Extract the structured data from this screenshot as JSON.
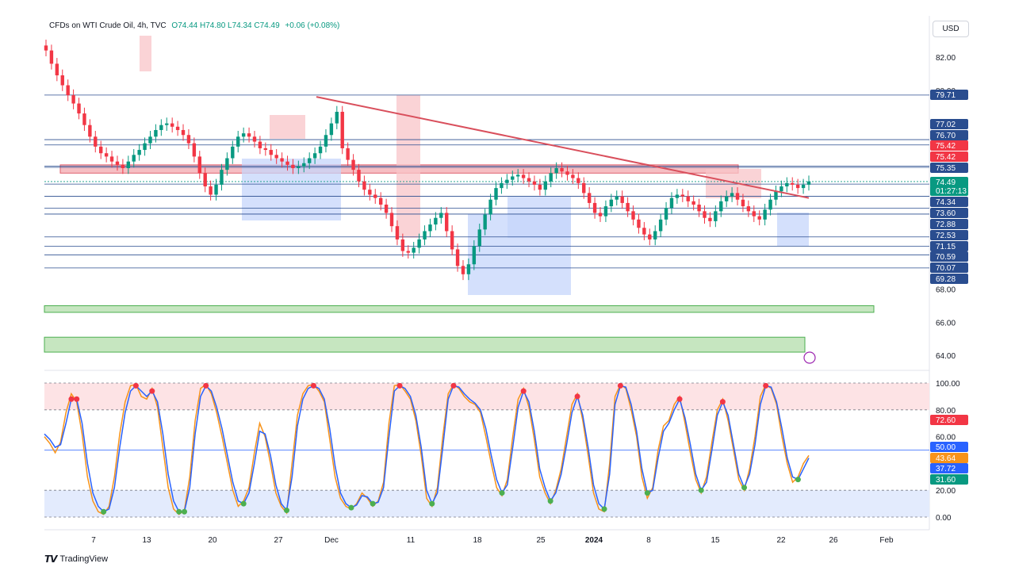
{
  "header": {
    "symbol": "CFDs on WTI Crude Oil, 4h, TVC",
    "ohlc": "O74.44 H74.80 L74.34 C74.49",
    "change": "+0.06 (+0.08%)"
  },
  "currency_button": "USD",
  "footer": {
    "logo_icon": "tradingview-logo-icon",
    "brand": "TradingView"
  },
  "colors": {
    "up": "#089981",
    "down": "#f23645",
    "level": "#2a4d8f",
    "trendline": "#d94f5c",
    "stoch_k": "#2962ff",
    "stoch_d": "#f7931a"
  },
  "chart_data": [
    {
      "type": "candlestick",
      "title": "",
      "ylim": [
        63,
        84
      ],
      "price_ticks": [
        "82.00",
        "80.00",
        "68.00",
        "66.00",
        "64.00"
      ],
      "x_ticks": [
        "7",
        "13",
        "20",
        "27",
        "Dec",
        "11",
        "18",
        "25",
        "2024",
        "8",
        "15",
        "22",
        "26",
        "Feb"
      ],
      "horizontal_levels": [
        79.71,
        77.02,
        76.7,
        75.42,
        75.35,
        74.34,
        73.6,
        72.88,
        72.53,
        71.15,
        70.59,
        70.07,
        69.28
      ],
      "price_labels": [
        {
          "text": "79.71",
          "color": "#2a4d8f"
        },
        {
          "text": "77.02",
          "color": "#2a4d8f"
        },
        {
          "text": "76.70",
          "color": "#2a4d8f"
        },
        {
          "text": "75.42",
          "color": "#f23645"
        },
        {
          "text": "75.42",
          "color": "#f23645"
        },
        {
          "text": "75.35",
          "color": "#2a4d8f"
        },
        {
          "text": "74.49",
          "color": "#089981"
        },
        {
          "text": "01:27:13",
          "color": "#089981"
        },
        {
          "text": "74.34",
          "color": "#2a4d8f"
        },
        {
          "text": "73.60",
          "color": "#2a4d8f"
        },
        {
          "text": "72.88",
          "color": "#2a4d8f"
        },
        {
          "text": "72.53",
          "color": "#2a4d8f"
        },
        {
          "text": "71.15",
          "color": "#2a4d8f"
        },
        {
          "text": "70.59",
          "color": "#2a4d8f"
        },
        {
          "text": "70.07",
          "color": "#2a4d8f"
        },
        {
          "text": "69.28",
          "color": "#2a4d8f"
        }
      ],
      "resistance_zone": [
        75.0,
        75.5
      ],
      "support_zones": [
        [
          66.6,
          67.0
        ],
        [
          64.2,
          65.1
        ]
      ],
      "trendline": {
        "from": [
          399,
          79.6
        ],
        "to": [
          1020,
          73.5
        ]
      },
      "series_close": [
        82.4,
        81.6,
        80.9,
        80.3,
        79.7,
        79.2,
        78.6,
        77.9,
        77.2,
        76.6,
        76.2,
        76.0,
        75.7,
        75.5,
        75.3,
        75.7,
        76.1,
        76.4,
        76.8,
        77.2,
        77.6,
        77.9,
        78.0,
        77.8,
        77.6,
        77.3,
        76.8,
        76.0,
        75.0,
        74.2,
        73.7,
        74.3,
        75.2,
        75.9,
        76.6,
        77.2,
        77.4,
        77.2,
        76.9,
        76.5,
        76.4,
        76.1,
        75.9,
        75.7,
        75.5,
        75.3,
        75.4,
        75.6,
        75.9,
        76.2,
        76.6,
        77.3,
        78.0,
        78.7,
        76.5,
        75.8,
        75.2,
        74.5,
        74.0,
        73.7,
        73.5,
        73.1,
        72.6,
        71.8,
        71.0,
        70.3,
        70.2,
        70.5,
        71.0,
        71.5,
        71.9,
        72.3,
        72.6,
        71.5,
        70.4,
        69.4,
        68.9,
        69.5,
        70.6,
        71.6,
        72.5,
        73.4,
        74.1,
        74.4,
        74.6,
        74.8,
        74.9,
        74.7,
        74.5,
        74.3,
        74.0,
        74.5,
        75.0,
        75.3,
        75.1,
        74.9,
        74.7,
        74.4,
        73.8,
        73.2,
        72.6,
        72.4,
        73.0,
        73.4,
        73.6,
        73.2,
        72.7,
        72.2,
        71.7,
        71.3,
        71.0,
        71.5,
        72.2,
        72.9,
        73.5,
        73.7,
        73.6,
        73.3,
        73.1,
        72.7,
        72.3,
        72.1,
        72.7,
        73.3,
        73.6,
        73.8,
        73.4,
        73.0,
        72.7,
        72.4,
        72.2,
        72.8,
        73.4,
        73.9,
        74.2,
        74.4,
        74.3,
        74.1,
        74.3,
        74.5
      ],
      "volume_profile_boxes": "static"
    },
    {
      "type": "line",
      "title": "",
      "ylim": [
        0,
        100
      ],
      "y_ticks": [
        "100.00",
        "80.00",
        "60.00",
        "20.00",
        "0.00"
      ],
      "bands": {
        "overbought": [
          80,
          100
        ],
        "oversold": [
          0,
          20
        ],
        "mid": 50
      },
      "value_labels": [
        {
          "text": "72.60",
          "color": "#f23645"
        },
        {
          "text": "50.00",
          "color": "#2962ff"
        },
        {
          "text": "43.64",
          "color": "#f7931a"
        },
        {
          "text": "37.72",
          "color": "#2962ff"
        },
        {
          "text": "31.60",
          "color": "#089981"
        }
      ],
      "series": [
        {
          "values": [
            60,
            55,
            48,
            56,
            78,
            92,
            86,
            62,
            30,
            12,
            4,
            2,
            8,
            30,
            62,
            86,
            98,
            99,
            90,
            88,
            96,
            82,
            52,
            22,
            6,
            2,
            5,
            30,
            72,
            96,
            99,
            92,
            78,
            60,
            40,
            20,
            8,
            12,
            22,
            48,
            70,
            60,
            40,
            18,
            8,
            3,
            40,
            76,
            92,
            98,
            99,
            94,
            86,
            58,
            30,
            14,
            8,
            6,
            10,
            18,
            14,
            8,
            12,
            26,
            70,
            98,
            99,
            94,
            88,
            72,
            46,
            14,
            8,
            22,
            60,
            92,
            99,
            96,
            90,
            86,
            84,
            78,
            60,
            40,
            22,
            16,
            28,
            60,
            88,
            96,
            82,
            58,
            30,
            18,
            10,
            20,
            36,
            60,
            84,
            92,
            72,
            46,
            18,
            6,
            4,
            40,
            90,
            99,
            96,
            80,
            60,
            30,
            14,
            22,
            50,
            68,
            72,
            84,
            90,
            70,
            48,
            28,
            18,
            30,
            56,
            80,
            88,
            72,
            50,
            28,
            20,
            36,
            60,
            90,
            99,
            96,
            84,
            60,
            40,
            26,
            30,
            40,
            46
          ]
        },
        {
          "values": [
            62,
            58,
            52,
            54,
            70,
            88,
            88,
            70,
            40,
            18,
            8,
            4,
            6,
            22,
            52,
            78,
            94,
            98,
            94,
            90,
            94,
            86,
            62,
            32,
            12,
            4,
            4,
            22,
            62,
            90,
            98,
            94,
            82,
            66,
            46,
            26,
            12,
            10,
            18,
            40,
            64,
            62,
            46,
            24,
            10,
            5,
            30,
            68,
            88,
            96,
            98,
            96,
            88,
            66,
            38,
            18,
            10,
            7,
            9,
            16,
            15,
            10,
            11,
            22,
            60,
            94,
            98,
            96,
            90,
            76,
            52,
            20,
            10,
            18,
            52,
            88,
            98,
            97,
            92,
            88,
            85,
            80,
            66,
            46,
            28,
            18,
            24,
            52,
            82,
            94,
            86,
            64,
            36,
            22,
            12,
            18,
            32,
            54,
            78,
            90,
            76,
            52,
            24,
            10,
            6,
            32,
            84,
            98,
            97,
            84,
            64,
            36,
            18,
            20,
            44,
            64,
            70,
            80,
            88,
            74,
            54,
            32,
            20,
            26,
            50,
            76,
            86,
            76,
            54,
            32,
            22,
            32,
            54,
            84,
            98,
            97,
            86,
            66,
            44,
            30,
            28,
            36,
            44
          ]
        }
      ]
    }
  ]
}
